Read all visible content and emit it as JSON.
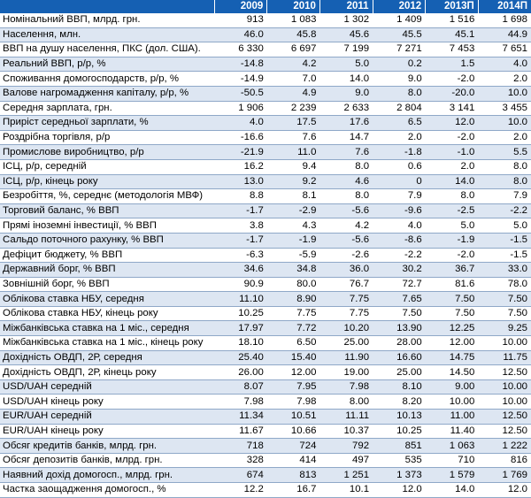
{
  "header": {
    "years": [
      "2009",
      "2010",
      "2011",
      "2012",
      "2013П",
      "2014П"
    ]
  },
  "rows": [
    {
      "label": "Номінальний ВВП, млрд. грн.",
      "values": [
        "913",
        "1 083",
        "1 302",
        "1 409",
        "1 516",
        "1 698"
      ]
    },
    {
      "label": "Населення, млн.",
      "values": [
        "46.0",
        "45.8",
        "45.6",
        "45.5",
        "45.1",
        "44.9"
      ]
    },
    {
      "label": "ВВП на душу населення, ПКС (дол. США).",
      "values": [
        "6 330",
        "6 697",
        "7 199",
        "7 271",
        "7 453",
        "7 651"
      ]
    },
    {
      "label": "Реальний ВВП, р/р, %",
      "values": [
        "-14.8",
        "4.2",
        "5.0",
        "0.2",
        "1.5",
        "4.0"
      ]
    },
    {
      "label": "Споживання домогосподарств, р/р, %",
      "values": [
        "-14.9",
        "7.0",
        "14.0",
        "9.0",
        "-2.0",
        "2.0"
      ]
    },
    {
      "label": "Валове нагромадження капіталу, р/р, %",
      "values": [
        "-50.5",
        "4.9",
        "9.0",
        "8.0",
        "-20.0",
        "10.0"
      ]
    },
    {
      "label": "Середня зарплата, грн.",
      "values": [
        "1 906",
        "2 239",
        "2 633",
        "2 804",
        "3 141",
        "3 455"
      ]
    },
    {
      "label": "Приріст середньої зарплати, %",
      "values": [
        "4.0",
        "17.5",
        "17.6",
        "6.5",
        "12.0",
        "10.0"
      ]
    },
    {
      "label": "Роздрібна торгівля, р/р",
      "values": [
        "-16.6",
        "7.6",
        "14.7",
        "2.0",
        "-2.0",
        "2.0"
      ]
    },
    {
      "label": "Промислове виробництво, р/р",
      "values": [
        "-21.9",
        "11.0",
        "7.6",
        "-1.8",
        "-1.0",
        "5.5"
      ]
    },
    {
      "label": "ІСЦ, р/р, середній",
      "values": [
        "16.2",
        "9.4",
        "8.0",
        "0.6",
        "2.0",
        "8.0"
      ]
    },
    {
      "label": "ІСЦ, р/р, кінець року",
      "values": [
        "13.0",
        "9.2",
        "4.6",
        "0",
        "14.0",
        "8.0"
      ]
    },
    {
      "label": "Безробіття, %, середнє (методологія МВФ)",
      "values": [
        "8.8",
        "8.1",
        "8.0",
        "7.9",
        "8.0",
        "7.9"
      ]
    },
    {
      "label": "Торговий баланс, % ВВП",
      "values": [
        "-1.7",
        "-2.9",
        "-5.6",
        "-9.6",
        "-2.5",
        "-2.2"
      ]
    },
    {
      "label": "Прямі іноземні інвестиції, % ВВП",
      "values": [
        "3.8",
        "4.3",
        "4.2",
        "4.0",
        "5.0",
        "5.0"
      ]
    },
    {
      "label": "Сальдо поточного рахунку, % ВВП",
      "values": [
        "-1.7",
        "-1.9",
        "-5.6",
        "-8.6",
        "-1.9",
        "-1.5"
      ]
    },
    {
      "label": "Дефіцит бюджету, % ВВП",
      "values": [
        "-6.3",
        "-5.9",
        "-2.6",
        "-2.2",
        "-2.0",
        "-1.5"
      ]
    },
    {
      "label": "Державний борг, % ВВП",
      "values": [
        "34.6",
        "34.8",
        "36.0",
        "30.2",
        "36.7",
        "33.0"
      ]
    },
    {
      "label": "Зовнішній борг, % ВВП",
      "values": [
        "90.9",
        "80.0",
        "76.7",
        "72.7",
        "81.6",
        "78.0"
      ]
    },
    {
      "label": "Облікова ставка НБУ, середня",
      "values": [
        "11.10",
        "8.90",
        "7.75",
        "7.65",
        "7.50",
        "7.50"
      ]
    },
    {
      "label": "Облікова ставка НБУ, кінець року",
      "values": [
        "10.25",
        "7.75",
        "7.75",
        "7.50",
        "7.50",
        "7.50"
      ]
    },
    {
      "label": "Міжбанківська ставка на 1 міс., середня",
      "values": [
        "17.97",
        "7.72",
        "10.20",
        "13.90",
        "12.25",
        "9.25"
      ]
    },
    {
      "label": "Міжбанківська ставка на 1 міс., кінець року",
      "values": [
        "18.10",
        "6.50",
        "25.00",
        "28.00",
        "12.00",
        "10.00"
      ]
    },
    {
      "label": "Дохідність ОВДП, 2Р, середня",
      "values": [
        "25.40",
        "15.40",
        "11.90",
        "16.60",
        "14.75",
        "11.75"
      ]
    },
    {
      "label": "Дохідність ОВДП, 2Р, кінець року",
      "values": [
        "26.00",
        "12.00",
        "19.00",
        "25.00",
        "14.50",
        "12.50"
      ]
    },
    {
      "label": "USD/UAH середній",
      "values": [
        "8.07",
        "7.95",
        "7.98",
        "8.10",
        "9.00",
        "10.00"
      ]
    },
    {
      "label": "USD/UAH кінець року",
      "values": [
        "7.98",
        "7.98",
        "8.00",
        "8.20",
        "10.00",
        "10.00"
      ]
    },
    {
      "label": "EUR/UAH середній",
      "values": [
        "11.34",
        "10.51",
        "11.11",
        "10.13",
        "11.00",
        "12.50"
      ]
    },
    {
      "label": "EUR/UAH кінець року",
      "values": [
        "11.67",
        "10.66",
        "10.37",
        "10.25",
        "11.40",
        "12.50"
      ]
    },
    {
      "label": "Обсяг кредитів банків, млрд. грн.",
      "values": [
        "718",
        "724",
        "792",
        "851",
        "1 063",
        "1 222"
      ]
    },
    {
      "label": "Обсяг депозитів банків, млрд. грн.",
      "values": [
        "328",
        "414",
        "497",
        "535",
        "710",
        "816"
      ]
    },
    {
      "label": "Наявний дохід домогосп., млрд. грн.",
      "values": [
        "674",
        "813",
        "1 251",
        "1 373",
        "1 579",
        "1 769"
      ]
    },
    {
      "label": "Частка заощадження домогосп., %",
      "values": [
        "12.2",
        "16.7",
        "10.1",
        "12.0",
        "14.0",
        "12.0"
      ]
    }
  ]
}
